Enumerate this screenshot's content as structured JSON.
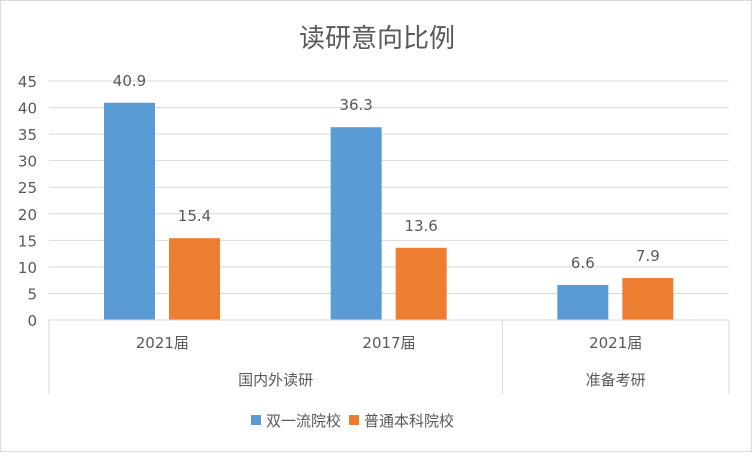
{
  "chart_data": {
    "type": "bar",
    "title": "读研意向比例",
    "categories": [
      "2021届",
      "2017届",
      "2021届"
    ],
    "category_groups": [
      {
        "label": "国内外读研",
        "span": 2
      },
      {
        "label": "准备考研",
        "span": 1
      }
    ],
    "series": [
      {
        "name": "双一流院校",
        "values": [
          40.9,
          36.3,
          6.6
        ],
        "color": "#5b9bd5"
      },
      {
        "name": "普通本科院校",
        "values": [
          15.4,
          13.6,
          7.9
        ],
        "color": "#ed7d31"
      }
    ],
    "ylim": [
      0,
      45
    ],
    "yticks": [
      0,
      5,
      10,
      15,
      20,
      25,
      30,
      35,
      40,
      45
    ],
    "grid": true,
    "legend": "bottom",
    "xlabel": "",
    "ylabel": ""
  }
}
